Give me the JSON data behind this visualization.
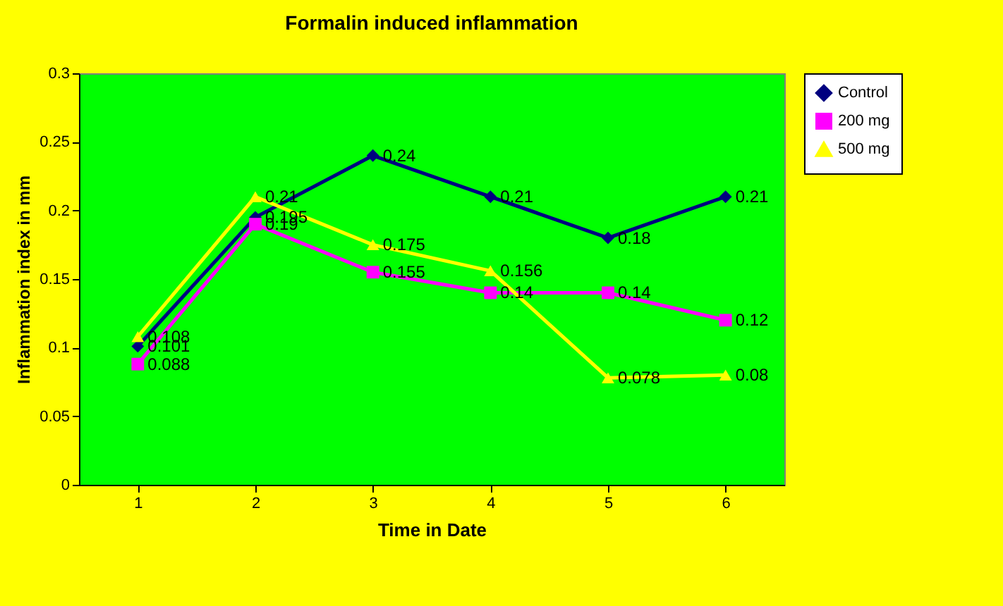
{
  "chart_data": {
    "type": "line",
    "title": "Formalin induced inflammation",
    "xlabel": "Time in Date",
    "ylabel": "Inflammation index in mm",
    "categories": [
      "1",
      "2",
      "3",
      "4",
      "5",
      "6"
    ],
    "series": [
      {
        "name": "Control",
        "color": "#000080",
        "marker": "diamond",
        "values": [
          0.101,
          0.195,
          0.24,
          0.21,
          0.18,
          0.21
        ]
      },
      {
        "name": "200 mg",
        "color": "#ff00ff",
        "marker": "square",
        "values": [
          0.088,
          0.19,
          0.155,
          0.14,
          0.14,
          0.12
        ]
      },
      {
        "name": "500 mg",
        "color": "#ffff00",
        "marker": "triangle",
        "values": [
          0.108,
          0.21,
          0.175,
          0.156,
          0.078,
          0.08
        ]
      }
    ],
    "ylim": [
      0,
      0.3
    ],
    "yticks": [
      0,
      0.05,
      0.1,
      0.15,
      0.2,
      0.25,
      0.3
    ],
    "data_labels": true,
    "legend": "right",
    "grid": false
  }
}
